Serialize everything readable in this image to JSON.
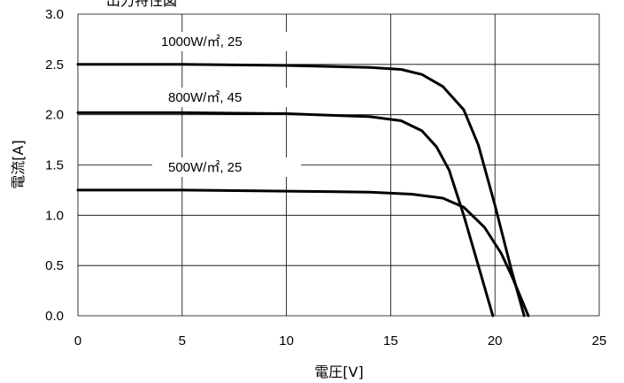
{
  "chart_data": {
    "type": "line",
    "title": "出力特性図",
    "xlabel": "電圧[V]",
    "ylabel": "電流[A]",
    "xlim": [
      0,
      25
    ],
    "ylim": [
      0,
      3.0
    ],
    "xticks": [
      "0",
      "5",
      "10",
      "15",
      "20",
      "25"
    ],
    "yticks": [
      "0.0",
      "0.5",
      "1.0",
      "1.5",
      "2.0",
      "2.5",
      "3.0"
    ],
    "grid": true,
    "series": [
      {
        "name": "1000W/㎡, 25",
        "x": [
          0,
          5,
          10,
          14,
          15.5,
          16.5,
          17.5,
          18.5,
          19.2,
          20,
          20.8,
          21.4
        ],
        "y": [
          2.5,
          2.5,
          2.49,
          2.47,
          2.45,
          2.4,
          2.28,
          2.05,
          1.7,
          1.1,
          0.45,
          0.0
        ]
      },
      {
        "name": "800W/㎡, 45",
        "x": [
          0,
          5,
          10,
          14,
          15.5,
          16.5,
          17.2,
          17.8,
          18.5,
          19.2,
          19.9
        ],
        "y": [
          2.02,
          2.02,
          2.01,
          1.98,
          1.94,
          1.84,
          1.68,
          1.45,
          1.0,
          0.5,
          0.0
        ]
      },
      {
        "name": "500W/㎡, 25",
        "x": [
          0,
          5,
          10,
          14,
          16,
          17.5,
          18.5,
          19.5,
          20.3,
          20.8,
          21.2,
          21.6
        ],
        "y": [
          1.25,
          1.25,
          1.24,
          1.23,
          1.21,
          1.17,
          1.08,
          0.88,
          0.62,
          0.4,
          0.2,
          0.0
        ]
      }
    ]
  }
}
